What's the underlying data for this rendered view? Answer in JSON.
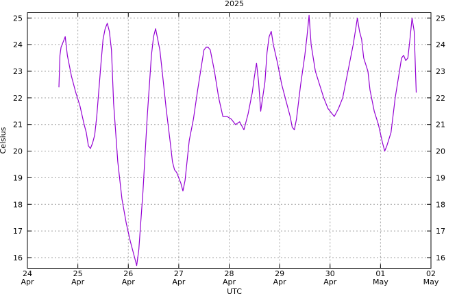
{
  "chart_data": {
    "type": "line",
    "title": "2025",
    "xlabel": "UTC",
    "ylabel": "Celsius",
    "ylim": [
      15.6,
      25.2
    ],
    "xlim": [
      "2025-04-24",
      "2025-05-02"
    ],
    "grid": true,
    "y_ticks": [
      16,
      17,
      18,
      19,
      20,
      21,
      22,
      23,
      24,
      25
    ],
    "x_ticks": [
      {
        "date": "2025-04-24",
        "day": "24",
        "month": "Apr"
      },
      {
        "date": "2025-04-25",
        "day": "25",
        "month": "Apr"
      },
      {
        "date": "2025-04-26",
        "day": "26",
        "month": "Apr"
      },
      {
        "date": "2025-04-27",
        "day": "27",
        "month": "Apr"
      },
      {
        "date": "2025-04-28",
        "day": "28",
        "month": "Apr"
      },
      {
        "date": "2025-04-29",
        "day": "29",
        "month": "Apr"
      },
      {
        "date": "2025-04-30",
        "day": "30",
        "month": "Apr"
      },
      {
        "date": "2025-05-01",
        "day": "01",
        "month": "May"
      },
      {
        "date": "2025-05-02",
        "day": "02",
        "month": "May"
      }
    ],
    "colors": {
      "series": "#9400d3"
    },
    "series": [
      {
        "points": [
          [
            "2025-04-24 15:00",
            22.4
          ],
          [
            "2025-04-24 15:30",
            23.6
          ],
          [
            "2025-04-24 16:00",
            23.9
          ],
          [
            "2025-04-24 17:00",
            24.1
          ],
          [
            "2025-04-24 18:00",
            24.3
          ],
          [
            "2025-04-24 19:00",
            23.6
          ],
          [
            "2025-04-24 21:00",
            22.8
          ],
          [
            "2025-04-24 23:00",
            22.2
          ],
          [
            "2025-04-25 01:00",
            21.7
          ],
          [
            "2025-04-25 03:00",
            21.0
          ],
          [
            "2025-04-25 04:00",
            20.7
          ],
          [
            "2025-04-25 05:00",
            20.2
          ],
          [
            "2025-04-25 06:00",
            20.1
          ],
          [
            "2025-04-25 07:00",
            20.3
          ],
          [
            "2025-04-25 08:00",
            20.6
          ],
          [
            "2025-04-25 09:00",
            21.3
          ],
          [
            "2025-04-25 10:00",
            22.3
          ],
          [
            "2025-04-25 11:00",
            23.3
          ],
          [
            "2025-04-25 12:00",
            24.2
          ],
          [
            "2025-04-25 13:00",
            24.6
          ],
          [
            "2025-04-25 14:00",
            24.8
          ],
          [
            "2025-04-25 15:00",
            24.5
          ],
          [
            "2025-04-25 16:00",
            23.8
          ],
          [
            "2025-04-25 17:00",
            21.8
          ],
          [
            "2025-04-25 19:00",
            19.6
          ],
          [
            "2025-04-25 21:00",
            18.2
          ],
          [
            "2025-04-25 23:00",
            17.3
          ],
          [
            "2025-04-26 01:00",
            16.6
          ],
          [
            "2025-04-26 03:00",
            16.0
          ],
          [
            "2025-04-26 04:00",
            15.7
          ],
          [
            "2025-04-26 05:00",
            16.3
          ],
          [
            "2025-04-26 07:00",
            18.5
          ],
          [
            "2025-04-26 09:00",
            21.3
          ],
          [
            "2025-04-26 11:00",
            23.6
          ],
          [
            "2025-04-26 12:00",
            24.3
          ],
          [
            "2025-04-26 13:00",
            24.6
          ],
          [
            "2025-04-26 14:00",
            24.2
          ],
          [
            "2025-04-26 15:00",
            23.8
          ],
          [
            "2025-04-26 16:00",
            23.1
          ],
          [
            "2025-04-26 18:00",
            21.6
          ],
          [
            "2025-04-26 20:00",
            20.3
          ],
          [
            "2025-04-26 21:00",
            19.6
          ],
          [
            "2025-04-26 22:00",
            19.3
          ],
          [
            "2025-04-26 23:00",
            19.2
          ],
          [
            "2025-04-27 01:00",
            18.8
          ],
          [
            "2025-04-27 02:00",
            18.5
          ],
          [
            "2025-04-27 03:00",
            18.9
          ],
          [
            "2025-04-27 05:00",
            20.4
          ],
          [
            "2025-04-27 07:00",
            21.2
          ],
          [
            "2025-04-27 09:00",
            22.3
          ],
          [
            "2025-04-27 11:00",
            23.3
          ],
          [
            "2025-04-27 12:00",
            23.8
          ],
          [
            "2025-04-27 13:00",
            23.9
          ],
          [
            "2025-04-27 14:00",
            23.9
          ],
          [
            "2025-04-27 15:00",
            23.8
          ],
          [
            "2025-04-27 17:00",
            23.0
          ],
          [
            "2025-04-27 19:00",
            22.0
          ],
          [
            "2025-04-27 21:00",
            21.3
          ],
          [
            "2025-04-27 23:00",
            21.3
          ],
          [
            "2025-04-28 01:00",
            21.2
          ],
          [
            "2025-04-28 03:00",
            21.0
          ],
          [
            "2025-04-28 05:00",
            21.1
          ],
          [
            "2025-04-28 07:00",
            20.8
          ],
          [
            "2025-04-28 09:00",
            21.4
          ],
          [
            "2025-04-28 11:00",
            22.2
          ],
          [
            "2025-04-28 12:00",
            22.8
          ],
          [
            "2025-04-28 13:00",
            23.3
          ],
          [
            "2025-04-28 14:00",
            22.6
          ],
          [
            "2025-04-28 15:00",
            21.5
          ],
          [
            "2025-04-28 17:00",
            22.6
          ],
          [
            "2025-04-28 18:00",
            23.7
          ],
          [
            "2025-04-28 19:00",
            24.3
          ],
          [
            "2025-04-28 20:00",
            24.5
          ],
          [
            "2025-04-28 21:00",
            24.0
          ],
          [
            "2025-04-28 23:00",
            23.3
          ],
          [
            "2025-04-29 01:00",
            22.5
          ],
          [
            "2025-04-29 03:00",
            21.9
          ],
          [
            "2025-04-29 05:00",
            21.3
          ],
          [
            "2025-04-29 06:00",
            20.9
          ],
          [
            "2025-04-29 07:00",
            20.8
          ],
          [
            "2025-04-29 08:00",
            21.2
          ],
          [
            "2025-04-29 10:00",
            22.5
          ],
          [
            "2025-04-29 12:00",
            23.6
          ],
          [
            "2025-04-29 13:00",
            24.3
          ],
          [
            "2025-04-29 14:00",
            25.1
          ],
          [
            "2025-04-29 15:00",
            24.0
          ],
          [
            "2025-04-29 17:00",
            23.0
          ],
          [
            "2025-04-29 19:00",
            22.5
          ],
          [
            "2025-04-29 21:00",
            22.0
          ],
          [
            "2025-04-29 23:00",
            21.6
          ],
          [
            "2025-04-30 01:00",
            21.4
          ],
          [
            "2025-04-30 02:00",
            21.3
          ],
          [
            "2025-04-30 04:00",
            21.6
          ],
          [
            "2025-04-30 06:00",
            22.0
          ],
          [
            "2025-04-30 08:00",
            22.8
          ],
          [
            "2025-04-30 10:00",
            23.6
          ],
          [
            "2025-04-30 11:00",
            24.0
          ],
          [
            "2025-04-30 12:00",
            24.5
          ],
          [
            "2025-04-30 13:00",
            25.0
          ],
          [
            "2025-04-30 14:00",
            24.5
          ],
          [
            "2025-04-30 15:00",
            24.2
          ],
          [
            "2025-04-30 16:00",
            23.5
          ],
          [
            "2025-04-30 18:00",
            23.0
          ],
          [
            "2025-04-30 19:00",
            22.3
          ],
          [
            "2025-04-30 21:00",
            21.5
          ],
          [
            "2025-04-30 23:00",
            21.0
          ],
          [
            "2025-05-01 01:00",
            20.3
          ],
          [
            "2025-05-01 02:00",
            20.0
          ],
          [
            "2025-05-01 03:00",
            20.2
          ],
          [
            "2025-05-01 05:00",
            20.7
          ],
          [
            "2025-05-01 07:00",
            22.0
          ],
          [
            "2025-05-01 09:00",
            23.0
          ],
          [
            "2025-05-01 10:00",
            23.5
          ],
          [
            "2025-05-01 11:00",
            23.6
          ],
          [
            "2025-05-01 12:00",
            23.4
          ],
          [
            "2025-05-01 13:00",
            23.5
          ],
          [
            "2025-05-01 14:00",
            24.2
          ],
          [
            "2025-05-01 15:00",
            25.0
          ],
          [
            "2025-05-01 16:00",
            24.5
          ],
          [
            "2025-05-01 17:00",
            22.2
          ]
        ]
      }
    ]
  }
}
